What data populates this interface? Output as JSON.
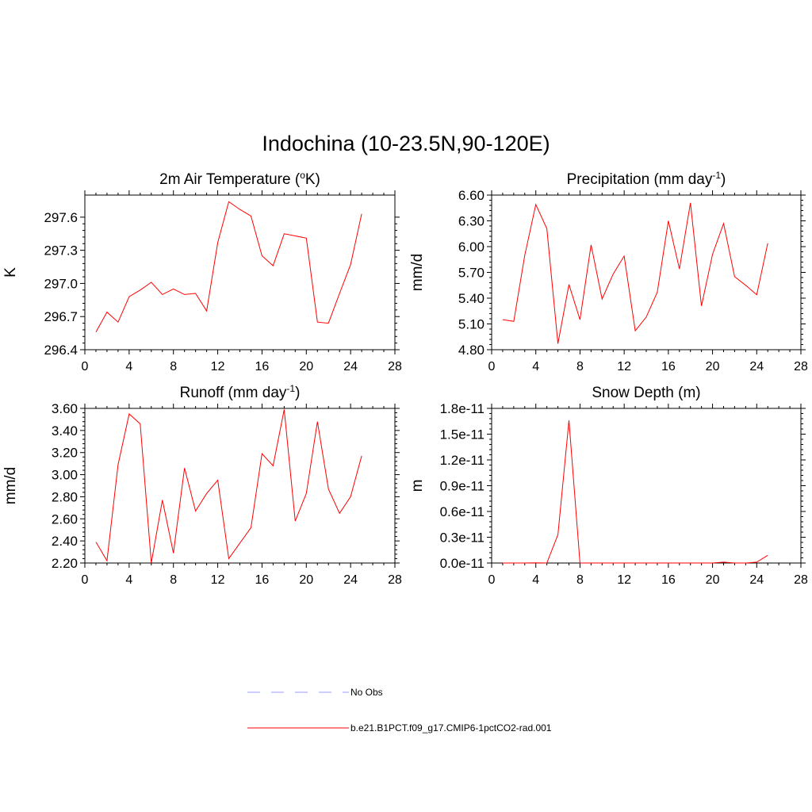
{
  "page_title": "Indochina (10-23.5N,90-120E)",
  "colors": {
    "model": "#ff0000",
    "obs": "#9999ff",
    "axis": "#000000"
  },
  "legend": {
    "obs_label": "No Obs",
    "model_label": "b.e21.B1PCT.f09_g17.CMIP6-1pctCO2-rad.001"
  },
  "chart_data": [
    {
      "type": "line",
      "title": "2m Air Temperature (",
      "title_sup": "o",
      "title_tail": "K)",
      "ylabel": "K",
      "xlim": [
        0,
        28
      ],
      "xticks": [
        0,
        4,
        8,
        12,
        16,
        20,
        24,
        28
      ],
      "xtick_labels": [
        "0",
        "4",
        "8",
        "12",
        "16",
        "20",
        "24",
        "28"
      ],
      "ylim": [
        296.4,
        297.8
      ],
      "yticks": [
        296.4,
        296.7,
        297.0,
        297.3,
        297.6
      ],
      "ytick_labels": [
        "296.4",
        "296.7",
        "297.0",
        "297.3",
        "297.6"
      ],
      "series": [
        {
          "x": [
            1,
            2,
            3,
            4,
            5,
            6,
            7,
            8,
            9,
            10,
            11,
            12,
            13,
            14,
            15,
            16,
            17,
            18,
            19,
            20,
            21,
            22,
            23,
            24,
            25
          ],
          "values": [
            296.56,
            296.74,
            296.65,
            296.88,
            296.94,
            297.01,
            296.9,
            296.95,
            296.9,
            296.91,
            296.75,
            297.37,
            297.74,
            297.67,
            297.61,
            297.25,
            297.16,
            297.45,
            297.43,
            297.41,
            296.65,
            296.64,
            296.91,
            297.17,
            297.63
          ]
        }
      ]
    },
    {
      "type": "line",
      "title": "Precipitation (mm day",
      "title_sup": "-1",
      "title_tail": ")",
      "ylabel": "mm/d",
      "xlim": [
        0,
        28
      ],
      "xticks": [
        0,
        4,
        8,
        12,
        16,
        20,
        24,
        28
      ],
      "xtick_labels": [
        "0",
        "4",
        "8",
        "12",
        "16",
        "20",
        "24",
        "28"
      ],
      "ylim": [
        4.8,
        6.6
      ],
      "yticks": [
        4.8,
        5.1,
        5.4,
        5.7,
        6.0,
        6.3,
        6.6
      ],
      "ytick_labels": [
        "4.80",
        "5.10",
        "5.40",
        "5.70",
        "6.00",
        "6.30",
        "6.60"
      ],
      "series": [
        {
          "x": [
            1,
            2,
            3,
            4,
            5,
            6,
            7,
            8,
            9,
            10,
            11,
            12,
            13,
            14,
            15,
            16,
            17,
            18,
            19,
            20,
            21,
            22,
            23,
            24,
            25
          ],
          "values": [
            5.15,
            5.13,
            5.9,
            6.49,
            6.21,
            4.87,
            5.56,
            5.15,
            6.02,
            5.39,
            5.68,
            5.89,
            5.02,
            5.18,
            5.47,
            6.3,
            5.74,
            6.51,
            5.31,
            5.91,
            6.27,
            5.65,
            5.55,
            5.44,
            6.04
          ]
        }
      ]
    },
    {
      "type": "line",
      "title": "Runoff (mm day",
      "title_sup": "-1",
      "title_tail": ")",
      "ylabel": "mm/d",
      "xlim": [
        0,
        28
      ],
      "xticks": [
        0,
        4,
        8,
        12,
        16,
        20,
        24,
        28
      ],
      "xtick_labels": [
        "0",
        "4",
        "8",
        "12",
        "16",
        "20",
        "24",
        "28"
      ],
      "ylim": [
        2.2,
        3.6
      ],
      "yticks": [
        2.2,
        2.4,
        2.6,
        2.8,
        3.0,
        3.2,
        3.4,
        3.6
      ],
      "ytick_labels": [
        "2.20",
        "2.40",
        "2.60",
        "2.80",
        "3.00",
        "3.20",
        "3.40",
        "3.60"
      ],
      "series": [
        {
          "x": [
            1,
            2,
            3,
            4,
            5,
            6,
            7,
            8,
            9,
            10,
            11,
            12,
            13,
            14,
            15,
            16,
            17,
            18,
            19,
            20,
            21,
            22,
            23,
            24,
            25
          ],
          "values": [
            2.39,
            2.22,
            3.09,
            3.55,
            3.46,
            2.2,
            2.77,
            2.29,
            3.06,
            2.67,
            2.83,
            2.95,
            2.24,
            2.38,
            2.52,
            3.19,
            3.08,
            3.59,
            2.58,
            2.83,
            3.48,
            2.87,
            2.65,
            2.8,
            3.17
          ]
        }
      ]
    },
    {
      "type": "line",
      "title": "Snow Depth (m)",
      "title_sup": "",
      "title_tail": "",
      "ylabel": "m",
      "xlim": [
        0,
        28
      ],
      "xticks": [
        0,
        4,
        8,
        12,
        16,
        20,
        24,
        28
      ],
      "xtick_labels": [
        "0",
        "4",
        "8",
        "12",
        "16",
        "20",
        "24",
        "28"
      ],
      "ylim": [
        0,
        1.8e-11
      ],
      "yticks": [
        0,
        3e-12,
        6e-12,
        9e-12,
        1.2e-11,
        1.5e-11,
        1.8e-11
      ],
      "ytick_labels": [
        "0.0e-11",
        "0.3e-11",
        "0.6e-11",
        "0.9e-11",
        "1.2e-11",
        "1.5e-11",
        "1.8e-11"
      ],
      "series": [
        {
          "x": [
            1,
            2,
            3,
            4,
            5,
            6,
            7,
            8,
            9,
            10,
            11,
            12,
            13,
            14,
            15,
            16,
            17,
            18,
            19,
            20,
            21,
            22,
            23,
            24,
            25
          ],
          "values": [
            0,
            0,
            0,
            2e-14,
            0,
            3.3e-12,
            1.66e-11,
            0,
            0,
            0,
            0,
            0,
            0,
            0,
            0,
            0,
            0,
            0,
            0,
            0,
            1e-13,
            0,
            0,
            1e-13,
            9e-13
          ]
        }
      ]
    }
  ]
}
